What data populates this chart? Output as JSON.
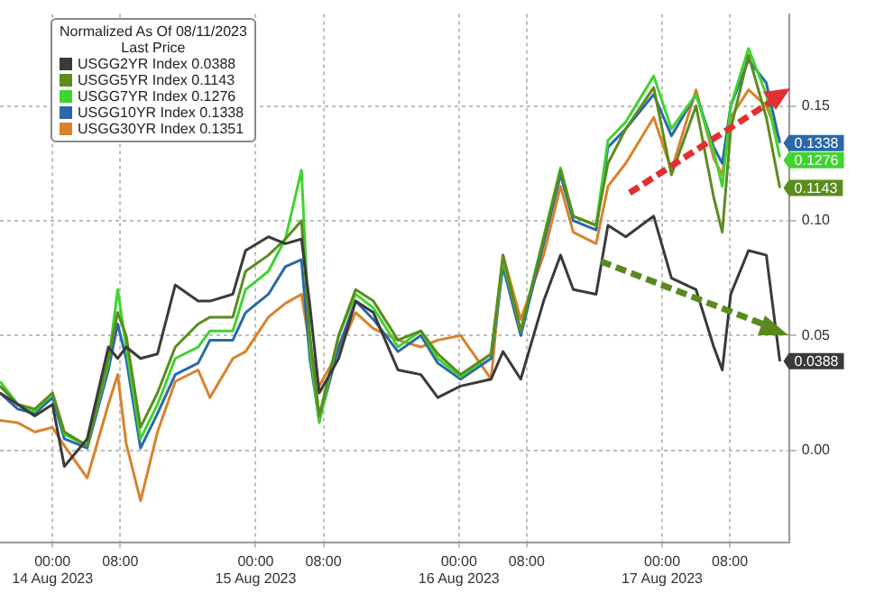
{
  "chart_data": {
    "type": "line",
    "legend_title": "Normalized As Of 08/11/2023\nLast Price",
    "x": [
      "2023-08-13T17:48",
      "2023-08-13T19:54",
      "2023-08-13T21:54",
      "2023-08-14T00:00",
      "2023-08-14T01:24",
      "2023-08-14T04:06",
      "2023-08-14T06:36",
      "2023-08-14T07:42",
      "2023-08-14T08:42",
      "2023-08-14T10:24",
      "2023-08-14T12:24",
      "2023-08-14T14:30",
      "2023-08-14T17:12",
      "2023-08-14T18:36",
      "2023-08-14T21:18",
      "2023-08-14T22:48",
      "2023-08-15T01:30",
      "2023-08-15T03:30",
      "2023-08-15T05:24",
      "2023-08-15T06:24",
      "2023-08-15T07:30",
      "2023-08-15T09:48",
      "2023-08-15T11:48",
      "2023-08-15T13:54",
      "2023-08-15T16:48",
      "2023-08-15T19:30",
      "2023-08-15T21:30",
      "2023-08-16T00:12",
      "2023-08-16T03:48",
      "2023-08-16T05:12",
      "2023-08-16T07:18",
      "2023-08-16T10:00",
      "2023-08-16T12:00",
      "2023-08-16T13:30",
      "2023-08-16T16:12",
      "2023-08-16T17:36",
      "2023-08-16T19:42",
      "2023-08-16T23:00",
      "2023-08-17T01:06",
      "2023-08-17T04:00",
      "2023-08-17T06:06",
      "2023-08-17T07:06",
      "2023-08-17T08:06",
      "2023-08-17T10:12",
      "2023-08-17T12:18",
      "2023-08-17T13:54"
    ],
    "series": [
      {
        "name": "USGG2YR Index 0.0388",
        "color": "#3a3a3a",
        "values": [
          0.025,
          0.02,
          0.015,
          0.02,
          -0.007,
          0.005,
          0.045,
          0.04,
          0.045,
          0.04,
          0.042,
          0.072,
          0.065,
          0.065,
          0.068,
          0.087,
          0.093,
          0.09,
          0.092,
          0.063,
          0.025,
          0.04,
          0.065,
          0.06,
          0.035,
          0.033,
          0.023,
          0.028,
          0.031,
          0.043,
          0.031,
          0.065,
          0.085,
          0.07,
          0.068,
          0.098,
          0.093,
          0.102,
          0.075,
          0.07,
          0.045,
          0.035,
          0.068,
          0.087,
          0.085,
          0.0388
        ],
        "value_labels": [
          null,
          null,
          null,
          null,
          null,
          null,
          null,
          null,
          null,
          null,
          null,
          null,
          null,
          null,
          null,
          null,
          null,
          null,
          null,
          null,
          null,
          null,
          null,
          null,
          null,
          null,
          null,
          null,
          null,
          null,
          null,
          null,
          null,
          null,
          null,
          null,
          null,
          null,
          null,
          null,
          null,
          null,
          null,
          null,
          null,
          "0.0388"
        ]
      },
      {
        "name": "USGG5YR Index 0.1143",
        "color": "#5b8c1e",
        "values": [
          0.028,
          0.02,
          0.018,
          0.025,
          0.008,
          0.002,
          0.04,
          0.06,
          0.05,
          0.01,
          0.025,
          0.045,
          0.055,
          0.058,
          0.058,
          0.078,
          0.085,
          0.092,
          0.1,
          0.05,
          0.015,
          0.05,
          0.07,
          0.065,
          0.048,
          0.052,
          0.042,
          0.033,
          0.042,
          0.085,
          0.052,
          0.092,
          0.122,
          0.102,
          0.098,
          0.125,
          0.14,
          0.158,
          0.12,
          0.15,
          0.11,
          0.095,
          0.14,
          0.172,
          0.145,
          0.1143
        ],
        "value_labels": [
          null,
          null,
          null,
          null,
          null,
          null,
          null,
          null,
          null,
          null,
          null,
          null,
          null,
          null,
          null,
          null,
          null,
          null,
          null,
          null,
          null,
          null,
          null,
          null,
          null,
          null,
          null,
          null,
          null,
          null,
          null,
          null,
          null,
          null,
          null,
          null,
          null,
          null,
          null,
          null,
          null,
          null,
          null,
          null,
          null,
          "0.1143"
        ]
      },
      {
        "name": "USGG7YR Index 0.1276",
        "color": "#3fd42f",
        "values": [
          0.03,
          0.02,
          0.017,
          0.025,
          0.007,
          0.002,
          0.038,
          0.07,
          0.045,
          0.005,
          0.02,
          0.04,
          0.045,
          0.052,
          0.052,
          0.07,
          0.078,
          0.092,
          0.122,
          0.045,
          0.012,
          0.05,
          0.068,
          0.062,
          0.045,
          0.052,
          0.04,
          0.032,
          0.042,
          0.083,
          0.052,
          0.093,
          0.123,
          0.102,
          0.098,
          0.135,
          0.143,
          0.163,
          0.14,
          0.155,
          0.13,
          0.115,
          0.15,
          0.175,
          0.155,
          0.1276
        ],
        "value_labels": [
          null,
          null,
          null,
          null,
          null,
          null,
          null,
          null,
          null,
          null,
          null,
          null,
          null,
          null,
          null,
          null,
          null,
          null,
          null,
          null,
          null,
          null,
          null,
          null,
          null,
          null,
          null,
          null,
          null,
          null,
          null,
          null,
          null,
          null,
          null,
          null,
          null,
          null,
          null,
          null,
          null,
          null,
          null,
          null,
          null,
          "0.1276"
        ]
      },
      {
        "name": "USGG10YR Index 0.1338",
        "color": "#2a68a8",
        "values": [
          0.025,
          0.018,
          0.016,
          0.023,
          0.005,
          0.001,
          0.035,
          0.055,
          0.04,
          0.001,
          0.016,
          0.033,
          0.038,
          0.048,
          0.048,
          0.06,
          0.068,
          0.08,
          0.083,
          0.04,
          0.013,
          0.045,
          0.065,
          0.057,
          0.043,
          0.05,
          0.038,
          0.031,
          0.04,
          0.08,
          0.05,
          0.09,
          0.12,
          0.1,
          0.096,
          0.132,
          0.14,
          0.155,
          0.137,
          0.155,
          0.132,
          0.125,
          0.15,
          0.17,
          0.16,
          0.1338
        ],
        "value_labels": [
          null,
          null,
          null,
          null,
          null,
          null,
          null,
          null,
          null,
          null,
          null,
          null,
          null,
          null,
          null,
          null,
          null,
          null,
          null,
          null,
          null,
          null,
          null,
          null,
          null,
          null,
          null,
          null,
          null,
          null,
          null,
          null,
          null,
          null,
          null,
          null,
          null,
          null,
          null,
          null,
          null,
          null,
          null,
          null,
          null,
          "0.1338"
        ]
      },
      {
        "name": "USGG30YR Index 0.1351",
        "color": "#d9822b",
        "values": [
          0.013,
          0.012,
          0.008,
          0.01,
          0.002,
          -0.012,
          0.02,
          0.033,
          0.003,
          -0.022,
          0.008,
          0.03,
          0.035,
          0.023,
          0.04,
          0.043,
          0.058,
          0.064,
          0.068,
          0.045,
          0.028,
          0.043,
          0.06,
          0.053,
          0.048,
          0.045,
          0.048,
          0.05,
          0.031,
          0.085,
          0.057,
          0.085,
          0.115,
          0.095,
          0.09,
          0.115,
          0.125,
          0.145,
          0.122,
          0.157,
          0.127,
          0.12,
          0.145,
          0.157,
          0.15,
          0.1351
        ]
      }
    ],
    "xlim": [
      "2023-08-13T17:48",
      "2023-08-17T15:00"
    ],
    "xticks": [
      {
        "value": "2023-08-14T00:00",
        "label": "00:00\n14 Aug 2023"
      },
      {
        "value": "2023-08-14T08:00",
        "label": "08:00"
      },
      {
        "value": "2023-08-15T00:00",
        "label": "00:00\n15 Aug 2023"
      },
      {
        "value": "2023-08-15T08:00",
        "label": "08:00"
      },
      {
        "value": "2023-08-16T00:00",
        "label": "00:00\n16 Aug 2023"
      },
      {
        "value": "2023-08-16T08:00",
        "label": "08:00"
      },
      {
        "value": "2023-08-17T00:00",
        "label": "00:00\n17 Aug 2023"
      },
      {
        "value": "2023-08-17T08:00",
        "label": "08:00"
      }
    ],
    "ylim": [
      -0.04,
      0.19
    ],
    "yticks": [
      {
        "value": 0,
        "label": "0.00"
      },
      {
        "value": 0.05,
        "label": "0.05"
      },
      {
        "value": 0.1,
        "label": "0.10"
      },
      {
        "value": 0.15,
        "label": "0.15"
      }
    ],
    "grid": true,
    "legend": "top left",
    "marker": "none",
    "line_style": "solid"
  }
}
